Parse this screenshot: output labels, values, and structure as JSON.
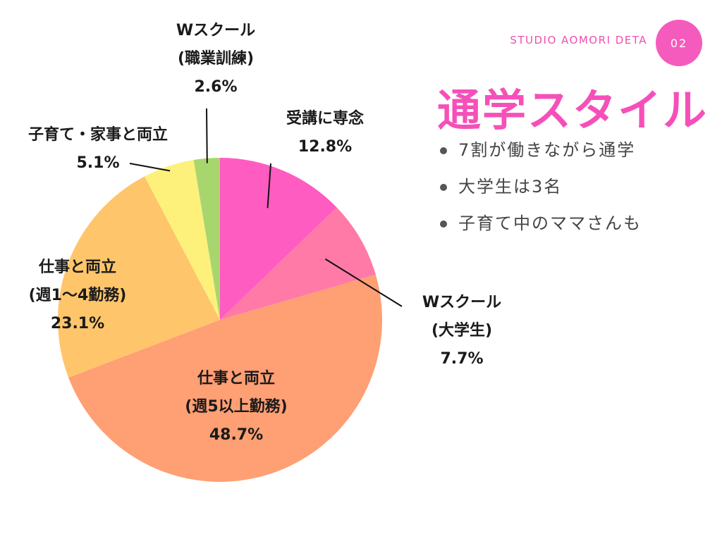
{
  "header": {
    "brand": "STUDIO  AOMORI DETA",
    "page_number": "02",
    "title": "通学スタイル"
  },
  "highlights": [
    "7割が働きながら通学",
    "大学生は3名",
    "子育て中のママさんも"
  ],
  "chart_data": {
    "type": "pie",
    "start": "12 o'clock",
    "direction": "clockwise",
    "slices": [
      {
        "label_lines": [
          "受講に専念"
        ],
        "value_text": "12.8%",
        "value": 12.8,
        "color": "#ff5cc2"
      },
      {
        "label_lines": [
          "Wスクール",
          "(大学生)"
        ],
        "value_text": "7.7%",
        "value": 7.7,
        "color": "#ff7aa6"
      },
      {
        "label_lines": [
          "仕事と両立",
          "(週5以上勤務)"
        ],
        "value_text": "48.7%",
        "value": 48.7,
        "color": "#ff9f74"
      },
      {
        "label_lines": [
          "仕事と両立",
          "(週1〜4勤務)"
        ],
        "value_text": "23.1%",
        "value": 23.1,
        "color": "#ffc56b"
      },
      {
        "label_lines": [
          "子育て・家事と両立"
        ],
        "value_text": "5.1%",
        "value": 5.1,
        "color": "#fdf17c"
      },
      {
        "label_lines": [
          "Wスクール",
          "(職業訓練)"
        ],
        "value_text": "2.6%",
        "value": 2.6,
        "color": "#a8d66e"
      }
    ]
  }
}
